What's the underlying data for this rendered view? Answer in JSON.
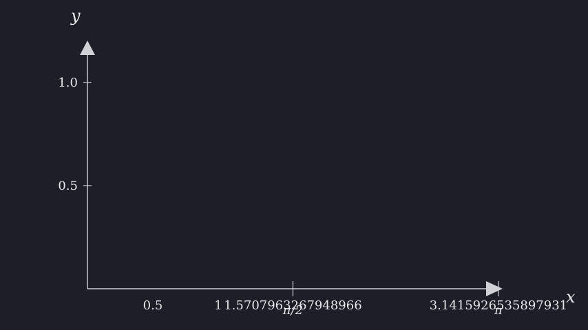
{
  "chart_data": {
    "type": "line",
    "title": "",
    "xlabel": "x",
    "ylabel": "y",
    "xlim": [
      0,
      3.141592653589793
    ],
    "ylim": [
      0,
      1.0
    ],
    "grid": false,
    "x_ticks": [
      {
        "value": 0.5,
        "label": "0.5"
      },
      {
        "value": 1,
        "label": "1"
      },
      {
        "value": 1.5707963267948966,
        "label": "1.5707963267948966",
        "sublabel": "π/2"
      },
      {
        "value": 3.141592653589793,
        "label": "3.1415926535897931",
        "sublabel": "π"
      }
    ],
    "y_ticks": [
      {
        "value": 0.5,
        "label": "0.5"
      },
      {
        "value": 1.0,
        "label": "1.0"
      }
    ],
    "series": []
  },
  "colors": {
    "background": "#1e1e28",
    "axis": "#d0d0d6",
    "text": "#e6e6ea"
  }
}
